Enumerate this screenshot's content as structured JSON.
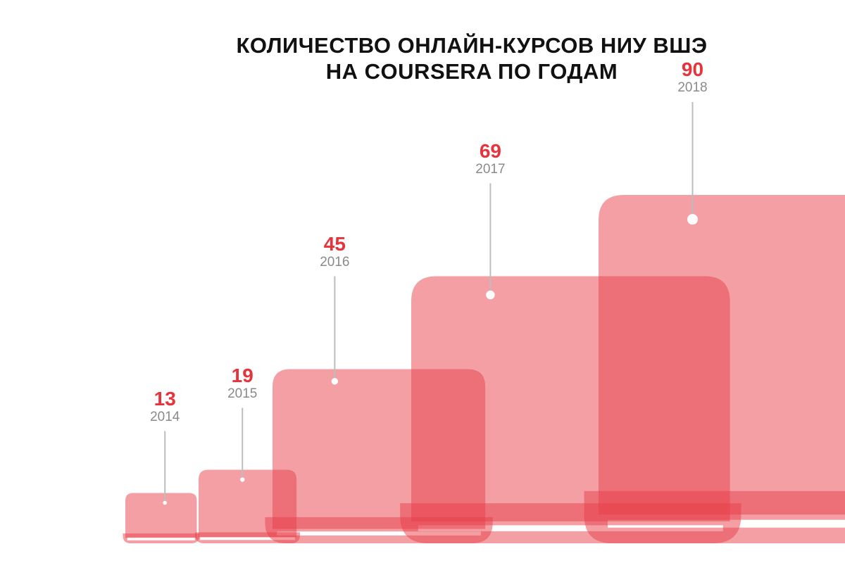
{
  "chart_data": {
    "type": "bar",
    "title_lines": [
      "КОЛИЧЕСТВО ОНЛАЙН-КУРСОВ НИУ ВШЭ",
      "НА COURSERA ПО ГОДАМ"
    ],
    "categories": [
      "2014",
      "2015",
      "2016",
      "2017",
      "2018"
    ],
    "values": [
      13,
      19,
      45,
      69,
      90
    ],
    "value_labels": [
      "13",
      "19",
      "45",
      "69",
      "90"
    ],
    "xlabel": "",
    "ylabel": "",
    "mark": "laptop-icon",
    "colors": {
      "fill": "#e8404a",
      "value_text": "#e6333c",
      "year_text": "#8a8a8a",
      "leader": "#bdbdbd"
    }
  }
}
